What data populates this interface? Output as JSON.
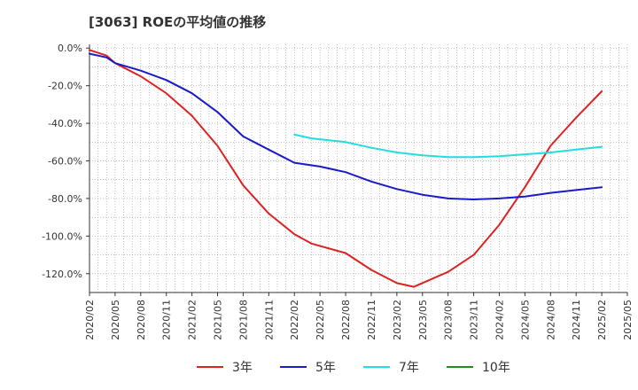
{
  "chart_data": {
    "type": "line",
    "title": "[3063]  ROEの平均値の推移",
    "xlabel": "",
    "ylabel": "",
    "x_ticks": [
      "2020/02",
      "2020/05",
      "2020/08",
      "2020/11",
      "2021/02",
      "2021/05",
      "2021/08",
      "2021/11",
      "2022/02",
      "2022/05",
      "2022/08",
      "2022/11",
      "2023/02",
      "2023/05",
      "2023/08",
      "2023/11",
      "2024/02",
      "2024/05",
      "2024/08",
      "2024/11",
      "2025/02",
      "2025/05"
    ],
    "y_ticks": [
      "0.0%",
      "-20.0%",
      "-40.0%",
      "-60.0%",
      "-80.0%",
      "-100.0%",
      "-120.0%"
    ],
    "ylim": [
      -130,
      2
    ],
    "grid": true,
    "legend_position": "bottom",
    "series": [
      {
        "name": "3年",
        "color": "#dd2222",
        "points": [
          [
            "2020/02",
            -1
          ],
          [
            "2020/04",
            -4
          ],
          [
            "2020/05",
            -8
          ],
          [
            "2020/08",
            -15
          ],
          [
            "2020/11",
            -24
          ],
          [
            "2021/02",
            -36
          ],
          [
            "2021/05",
            -52
          ],
          [
            "2021/08",
            -73
          ],
          [
            "2021/11",
            -88
          ],
          [
            "2022/02",
            -99
          ],
          [
            "2022/04",
            -104
          ],
          [
            "2022/08",
            -109
          ],
          [
            "2022/11",
            -118
          ],
          [
            "2023/02",
            -125
          ],
          [
            "2023/04",
            -127
          ],
          [
            "2023/08",
            -119
          ],
          [
            "2023/11",
            -110
          ],
          [
            "2024/02",
            -94
          ],
          [
            "2024/05",
            -74
          ],
          [
            "2024/08",
            -52
          ],
          [
            "2024/11",
            -37
          ],
          [
            "2025/02",
            -23
          ]
        ]
      },
      {
        "name": "5年",
        "color": "#1a1acc",
        "points": [
          [
            "2020/02",
            -3
          ],
          [
            "2020/04",
            -5
          ],
          [
            "2020/05",
            -8
          ],
          [
            "2020/08",
            -12
          ],
          [
            "2020/11",
            -17
          ],
          [
            "2021/02",
            -24
          ],
          [
            "2021/05",
            -34
          ],
          [
            "2021/08",
            -47
          ],
          [
            "2021/11",
            -54
          ],
          [
            "2022/02",
            -61
          ],
          [
            "2022/05",
            -63
          ],
          [
            "2022/08",
            -66
          ],
          [
            "2022/11",
            -71
          ],
          [
            "2023/02",
            -75
          ],
          [
            "2023/05",
            -78
          ],
          [
            "2023/08",
            -80
          ],
          [
            "2023/11",
            -80.5
          ],
          [
            "2024/02",
            -80
          ],
          [
            "2024/05",
            -79
          ],
          [
            "2024/08",
            -77
          ],
          [
            "2024/11",
            -75.5
          ],
          [
            "2025/02",
            -74
          ]
        ]
      },
      {
        "name": "7年",
        "color": "#22dddd",
        "points": [
          [
            "2022/02",
            -46
          ],
          [
            "2022/04",
            -48
          ],
          [
            "2022/08",
            -50
          ],
          [
            "2022/11",
            -53
          ],
          [
            "2023/02",
            -55.5
          ],
          [
            "2023/05",
            -57
          ],
          [
            "2023/08",
            -58
          ],
          [
            "2023/11",
            -58
          ],
          [
            "2024/02",
            -57.5
          ],
          [
            "2024/05",
            -56.5
          ],
          [
            "2024/08",
            -55.5
          ],
          [
            "2024/11",
            -54
          ],
          [
            "2025/02",
            -52.5
          ]
        ]
      },
      {
        "name": "10年",
        "color": "#228b22",
        "points": []
      }
    ]
  }
}
